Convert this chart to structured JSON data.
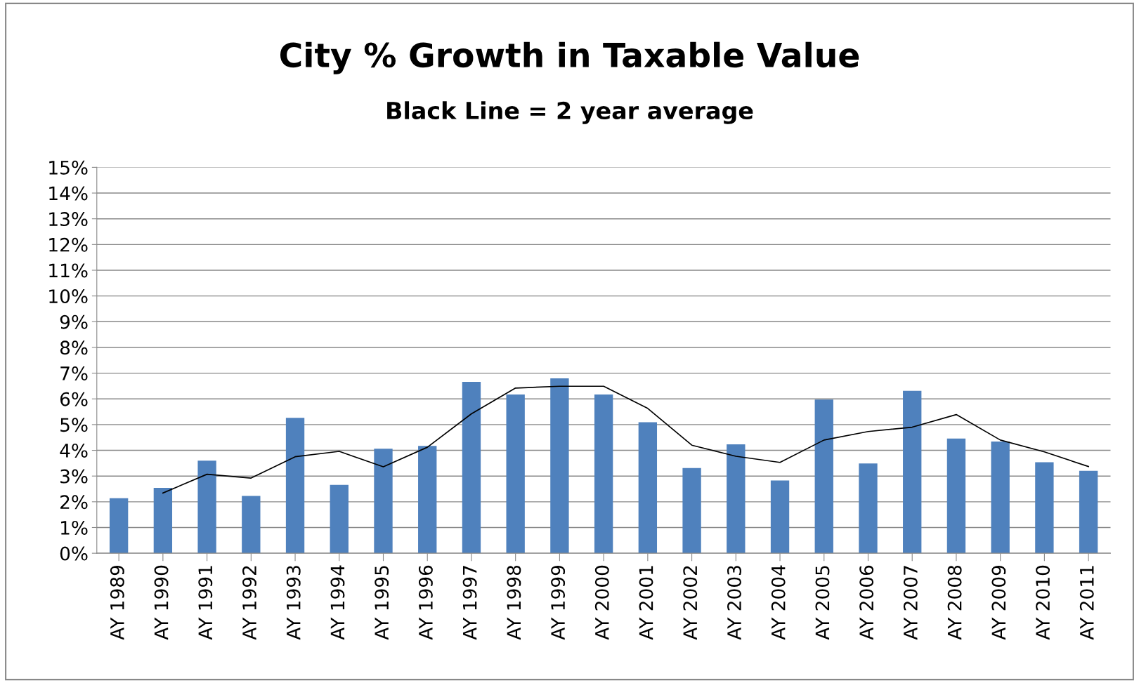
{
  "chart_data": {
    "type": "bar",
    "title": "City % Growth in Taxable Value",
    "subtitle": "Black Line = 2 year average",
    "categories": [
      "AY 1989",
      "AY 1990",
      "AY 1991",
      "AY 1992",
      "AY 1993",
      "AY 1994",
      "AY 1995",
      "AY 1996",
      "AY 1997",
      "AY 1998",
      "AY 1999",
      "AY 2000",
      "AY 2001",
      "AY 2002",
      "AY 2003",
      "AY 2004",
      "AY 2005",
      "AY 2006",
      "AY 2007",
      "AY 2008",
      "AY 2009",
      "AY 2010",
      "AY 2011"
    ],
    "series": [
      {
        "color": "#4f81bd",
        "values": [
          2.14,
          2.54,
          3.6,
          2.23,
          5.26,
          2.66,
          4.06,
          4.17,
          6.66,
          6.17,
          6.8,
          6.17,
          5.09,
          3.31,
          4.23,
          2.83,
          5.97,
          3.49,
          6.31,
          4.46,
          4.34,
          3.54,
          3.2
        ]
      },
      {
        "type": "line",
        "color": "#000000",
        "values": [
          null,
          2.34,
          3.07,
          2.92,
          3.75,
          3.96,
          3.36,
          4.12,
          5.42,
          6.42,
          6.49,
          6.49,
          5.63,
          4.2,
          3.77,
          3.53,
          4.4,
          4.73,
          4.9,
          5.39,
          4.4,
          3.94,
          3.37
        ]
      }
    ],
    "ylim": [
      0,
      15
    ],
    "yticks": [
      {
        "value": 0,
        "label": "0%"
      },
      {
        "value": 1,
        "label": "1%"
      },
      {
        "value": 2,
        "label": "2%"
      },
      {
        "value": 3,
        "label": "3%"
      },
      {
        "value": 4,
        "label": "4%"
      },
      {
        "value": 5,
        "label": "5%"
      },
      {
        "value": 6,
        "label": "6%"
      },
      {
        "value": 7,
        "label": "7%"
      },
      {
        "value": 8,
        "label": "8%"
      },
      {
        "value": 9,
        "label": "9%"
      },
      {
        "value": 10,
        "label": "10%"
      },
      {
        "value": 11,
        "label": "11%"
      },
      {
        "value": 12,
        "label": "12%"
      },
      {
        "value": 13,
        "label": "13%"
      },
      {
        "value": 14,
        "label": "14%"
      },
      {
        "value": 15,
        "label": "15%"
      }
    ],
    "grid": "y",
    "marker": "none",
    "line_style": "solid"
  }
}
